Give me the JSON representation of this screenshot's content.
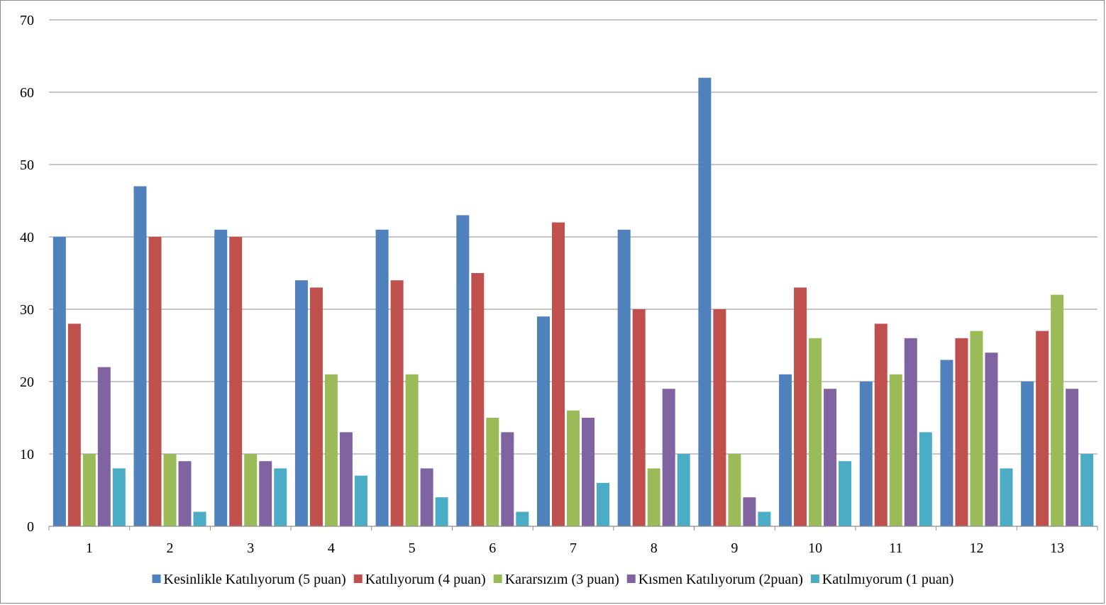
{
  "chart_data": {
    "type": "bar",
    "title": "",
    "xlabel": "",
    "ylabel": "",
    "categories": [
      "1",
      "2",
      "3",
      "4",
      "5",
      "6",
      "7",
      "8",
      "9",
      "10",
      "11",
      "12",
      "13"
    ],
    "ylim": [
      0,
      70
    ],
    "yticks": [
      "0",
      "10",
      "20",
      "30",
      "40",
      "50",
      "60",
      "70"
    ],
    "grid": "horizontal",
    "legend_position": "bottom",
    "series": [
      {
        "name": "Kesinlikle Katılıyorum (5 puan)",
        "color": "#4F81BD",
        "values": [
          40,
          47,
          41,
          34,
          41,
          43,
          29,
          41,
          62,
          21,
          20,
          23,
          20
        ]
      },
      {
        "name": "Katılıyorum (4 puan)",
        "color": "#C0504D",
        "values": [
          28,
          40,
          40,
          33,
          34,
          35,
          42,
          30,
          30,
          33,
          28,
          26,
          27
        ]
      },
      {
        "name": "Kararsızım (3 puan)",
        "color": "#9BBB59",
        "values": [
          10,
          10,
          10,
          21,
          21,
          15,
          16,
          8,
          10,
          26,
          21,
          27,
          32
        ]
      },
      {
        "name": "Kısmen Katılıyorum (2puan)",
        "color": "#8064A2",
        "values": [
          22,
          9,
          9,
          13,
          8,
          13,
          15,
          19,
          4,
          19,
          26,
          24,
          19
        ]
      },
      {
        "name": "Katılmıyorum (1 puan)",
        "color": "#4BACC6",
        "values": [
          8,
          2,
          8,
          7,
          4,
          2,
          6,
          10,
          2,
          9,
          13,
          8,
          10
        ]
      }
    ]
  }
}
